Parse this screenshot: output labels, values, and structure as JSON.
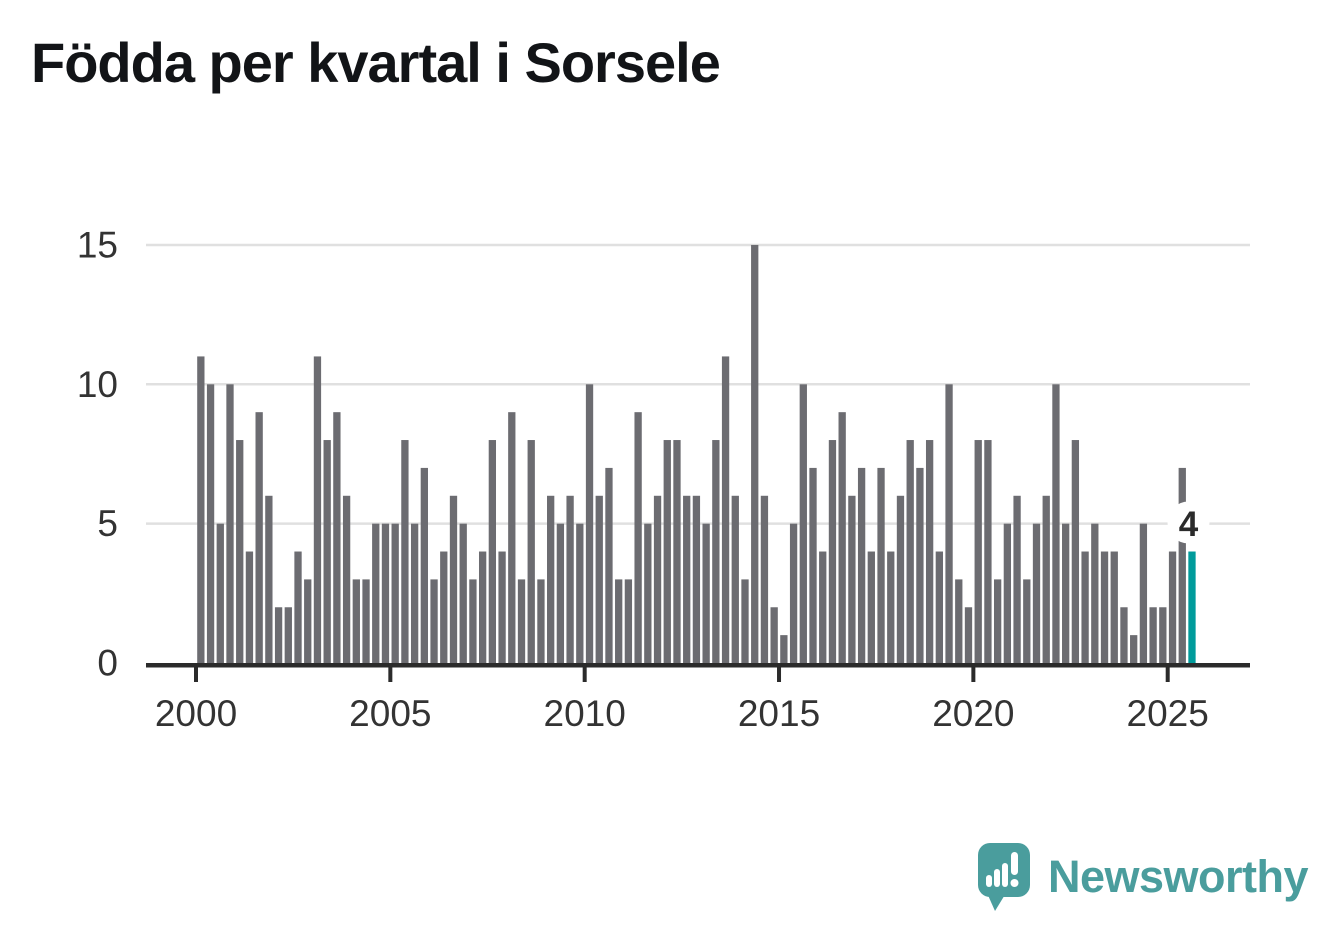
{
  "title": "Födda per kvartal i Sorsele",
  "annotation": {
    "last_value_label": "4"
  },
  "branding": {
    "name": "Newsworthy"
  },
  "colors": {
    "bar": "#6c6c71",
    "highlight": "#009b9b",
    "axis_line": "#2b2b2b",
    "grid": "#e0e0e0",
    "label": "#333333",
    "title": "#121417",
    "logo": "#4a9d9d",
    "annotation_text": "#2b2b2b",
    "annotation_halo": "#ffffff"
  },
  "chart_data": {
    "type": "bar",
    "title": "Födda per kvartal i Sorsele",
    "frequency": "quarterly",
    "x_start": "2000 Q1",
    "x_end": "2025 Q3",
    "values": [
      11,
      10,
      5,
      10,
      8,
      4,
      9,
      6,
      2,
      2,
      4,
      3,
      11,
      8,
      9,
      6,
      3,
      3,
      5,
      5,
      5,
      8,
      5,
      7,
      3,
      4,
      6,
      5,
      3,
      4,
      8,
      4,
      9,
      3,
      8,
      3,
      6,
      5,
      6,
      5,
      10,
      6,
      7,
      3,
      3,
      9,
      5,
      6,
      8,
      8,
      6,
      6,
      5,
      8,
      11,
      6,
      3,
      15,
      6,
      2,
      1,
      5,
      10,
      7,
      4,
      8,
      9,
      6,
      7,
      4,
      7,
      4,
      6,
      8,
      7,
      8,
      4,
      10,
      3,
      2,
      8,
      8,
      3,
      5,
      6,
      3,
      5,
      6,
      10,
      5,
      8,
      4,
      5,
      4,
      4,
      2,
      1,
      5,
      2,
      2,
      4,
      7,
      4
    ],
    "start_year": 2000,
    "x_tick_years": [
      2000,
      2005,
      2010,
      2015,
      2020,
      2025
    ],
    "x_tick_labels": [
      "2000",
      "2005",
      "2010",
      "2015",
      "2020",
      "2025"
    ],
    "y_ticks": [
      0,
      5,
      10,
      15
    ],
    "ylim": [
      0,
      15
    ],
    "grid": "horizontal",
    "highlight_last_bar": true,
    "last_bar_label": "4"
  }
}
